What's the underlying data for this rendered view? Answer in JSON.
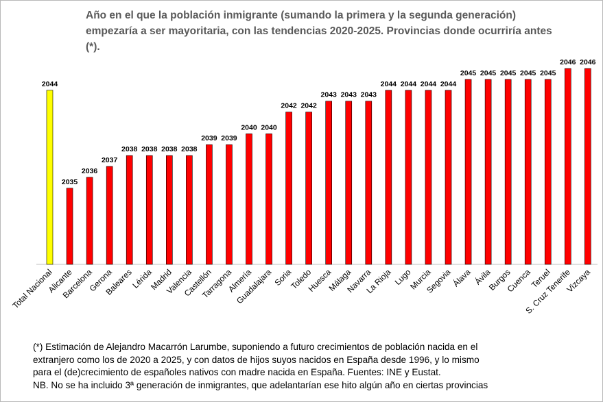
{
  "chart_data": {
    "type": "bar",
    "title": "Año en el que la población  inmigrante (sumando la primera y la segunda generación) empezaría a ser mayoritaria,  con las tendencias 2020-2025. Provincias donde ocurriría antes (*).",
    "categories": [
      "Total Nacional",
      "Alicante",
      "Barcelona",
      "Gerona",
      "Baleares",
      "Lérida",
      "Madrid",
      "Valencia",
      "Castellón",
      "Tarragona",
      "Almería",
      "Guadalajara",
      "Soria",
      "Toledo",
      "Huesca",
      "Málaga",
      "Navarra",
      "La Rioja",
      "Lugo",
      "Murcia",
      "Segovia",
      "Álava",
      "Ávila",
      "Burgos",
      "Cuenca",
      "Teruel",
      "S. Cruz Tenerife",
      "Vizcaya"
    ],
    "series": [
      {
        "values": [
          2044,
          2035,
          2036,
          2037,
          2038,
          2038,
          2038,
          2038,
          2039,
          2039,
          2040,
          2040,
          2042,
          2042,
          2043,
          2043,
          2043,
          2044,
          2044,
          2044,
          2044,
          2045,
          2045,
          2045,
          2045,
          2045,
          2046,
          2046
        ]
      }
    ],
    "ylim": [
      2028,
      2046
    ],
    "highlight_index": 0,
    "colors": {
      "highlight": "#ffff00",
      "bar": "#ff0000",
      "outline": "#000000"
    },
    "grid": false,
    "legend": false
  },
  "footnote": {
    "lines": [
      "(*) Estimación de Alejandro Macarrón Larumbe, suponiendo  a futuro crecimientos de población nacida en el",
      "extranjero como los de 2020 a 2025, y con datos de hijos suyos nacidos en España desde 1996, y lo mismo",
      "para el (de)crecimiento de españoles nativos con madre nacida en España. Fuentes: INE y Eustat.",
      "NB. No se ha incluido 3ª generación de inmigrantes, que adelantarían ese hito algún año en ciertas provincias"
    ]
  }
}
